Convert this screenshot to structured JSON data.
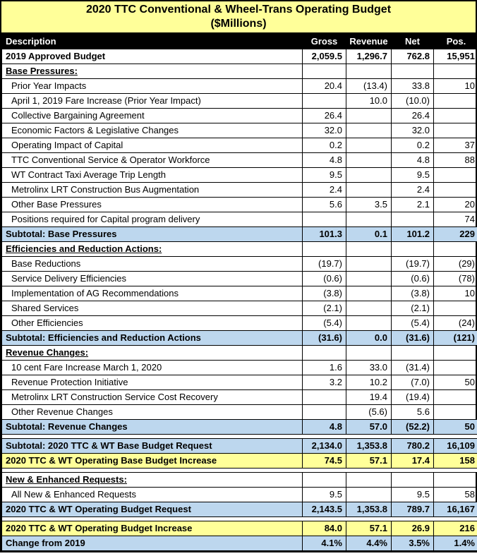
{
  "title": {
    "line1": "2020 TTC Conventional & Wheel-Trans Operating Budget",
    "line2": "($Millions)"
  },
  "colors": {
    "title_bg": "#FFFF99",
    "header_bg": "#000000",
    "header_text": "#FFFFFF",
    "subtotal_bg": "#BDD7EE",
    "highlight_bg": "#FFFF99",
    "border": "#000000"
  },
  "columns": [
    "Description",
    "Gross",
    "Revenue",
    "Net",
    "Pos."
  ],
  "rows": [
    {
      "type": "bold",
      "desc": "2019 Approved Budget",
      "gross": "2,059.5",
      "revenue": "1,296.7",
      "net": "762.8",
      "pos": "15,951"
    },
    {
      "type": "section",
      "desc": "Base Pressures:",
      "gross": "",
      "revenue": "",
      "net": "",
      "pos": ""
    },
    {
      "type": "item",
      "desc": "Prior Year Impacts",
      "gross": "20.4",
      "revenue": "(13.4)",
      "net": "33.8",
      "pos": "10"
    },
    {
      "type": "item",
      "desc": "April 1, 2019 Fare Increase (Prior Year Impact)",
      "gross": "",
      "revenue": "10.0",
      "net": "(10.0)",
      "pos": ""
    },
    {
      "type": "item",
      "desc": "Collective Bargaining Agreement",
      "gross": "26.4",
      "revenue": "",
      "net": "26.4",
      "pos": ""
    },
    {
      "type": "item",
      "desc": "Economic Factors & Legislative Changes",
      "gross": "32.0",
      "revenue": "",
      "net": "32.0",
      "pos": ""
    },
    {
      "type": "item",
      "desc": "Operating Impact of Capital",
      "gross": "0.2",
      "revenue": "",
      "net": "0.2",
      "pos": "37"
    },
    {
      "type": "item",
      "desc": "TTC Conventional Service & Operator Workforce",
      "gross": "4.8",
      "revenue": "",
      "net": "4.8",
      "pos": "88"
    },
    {
      "type": "item",
      "desc": "WT Contract Taxi Average Trip Length",
      "gross": "9.5",
      "revenue": "",
      "net": "9.5",
      "pos": ""
    },
    {
      "type": "item",
      "desc": "Metrolinx LRT Construction Bus Augmentation",
      "gross": "2.4",
      "revenue": "",
      "net": "2.4",
      "pos": ""
    },
    {
      "type": "item",
      "desc": "Other Base Pressures",
      "gross": "5.6",
      "revenue": "3.5",
      "net": "2.1",
      "pos": "20"
    },
    {
      "type": "item",
      "desc": "Positions required for Capital program delivery",
      "gross": "",
      "revenue": "",
      "net": "",
      "pos": "74"
    },
    {
      "type": "subtotal",
      "desc": "Subtotal: Base Pressures",
      "gross": "101.3",
      "revenue": "0.1",
      "net": "101.2",
      "pos": "229"
    },
    {
      "type": "section",
      "desc": "Efficiencies and Reduction Actions:",
      "gross": "",
      "revenue": "",
      "net": "",
      "pos": ""
    },
    {
      "type": "item",
      "desc": "Base Reductions",
      "gross": "(19.7)",
      "revenue": "",
      "net": "(19.7)",
      "pos": "(29)"
    },
    {
      "type": "item",
      "desc": "Service Delivery Efficiencies",
      "gross": "(0.6)",
      "revenue": "",
      "net": "(0.6)",
      "pos": "(78)"
    },
    {
      "type": "item",
      "desc": "Implementation of AG Recommendations",
      "gross": "(3.8)",
      "revenue": "",
      "net": "(3.8)",
      "pos": "10"
    },
    {
      "type": "item",
      "desc": "Shared Services",
      "gross": "(2.1)",
      "revenue": "",
      "net": "(2.1)",
      "pos": ""
    },
    {
      "type": "item",
      "desc": "Other Efficiencies",
      "gross": "(5.4)",
      "revenue": "",
      "net": "(5.4)",
      "pos": "(24)"
    },
    {
      "type": "subtotal",
      "desc": "Subtotal: Efficiencies and Reduction Actions",
      "gross": "(31.6)",
      "revenue": "0.0",
      "net": "(31.6)",
      "pos": "(121)"
    },
    {
      "type": "section",
      "desc": "Revenue Changes:",
      "gross": "",
      "revenue": "",
      "net": "",
      "pos": ""
    },
    {
      "type": "item",
      "desc": "10 cent Fare Increase March 1, 2020",
      "gross": "1.6",
      "revenue": "33.0",
      "net": "(31.4)",
      "pos": ""
    },
    {
      "type": "item",
      "desc": "Revenue Protection Initiative",
      "gross": "3.2",
      "revenue": "10.2",
      "net": "(7.0)",
      "pos": "50"
    },
    {
      "type": "item",
      "desc": "Metrolinx LRT Construction Service Cost Recovery",
      "gross": "",
      "revenue": "19.4",
      "net": "(19.4)",
      "pos": ""
    },
    {
      "type": "item",
      "desc": "Other Revenue Changes",
      "gross": "",
      "revenue": "(5.6)",
      "net": "5.6",
      "pos": ""
    },
    {
      "type": "subtotal",
      "desc": "Subtotal: Revenue Changes",
      "gross": "4.8",
      "revenue": "57.0",
      "net": "(52.2)",
      "pos": "50"
    },
    {
      "type": "spacer"
    },
    {
      "type": "subtotal",
      "desc": "Subtotal: 2020 TTC & WT Base Budget Request",
      "gross": "2,134.0",
      "revenue": "1,353.8",
      "net": "780.2",
      "pos": "16,109"
    },
    {
      "type": "highlight",
      "desc": "2020 TTC & WT Operating Base Budget Increase",
      "gross": "74.5",
      "revenue": "57.1",
      "net": "17.4",
      "pos": "158"
    },
    {
      "type": "spacer"
    },
    {
      "type": "section",
      "desc": "New & Enhanced Requests:",
      "gross": "",
      "revenue": "",
      "net": "",
      "pos": ""
    },
    {
      "type": "item",
      "desc": "All New & Enhanced Requests",
      "gross": "9.5",
      "revenue": "",
      "net": "9.5",
      "pos": "58"
    },
    {
      "type": "subtotal",
      "desc": "2020 TTC & WT Operating Budget Request",
      "gross": "2,143.5",
      "revenue": "1,353.8",
      "net": "789.7",
      "pos": "16,167"
    },
    {
      "type": "spacer"
    },
    {
      "type": "highlight",
      "desc": "2020 TTC & WT Operating Budget Increase",
      "gross": "84.0",
      "revenue": "57.1",
      "net": "26.9",
      "pos": "216"
    },
    {
      "type": "subtotal",
      "desc": "Change from 2019",
      "gross": "4.1%",
      "revenue": "4.4%",
      "net": "3.5%",
      "pos": "1.4%"
    }
  ]
}
